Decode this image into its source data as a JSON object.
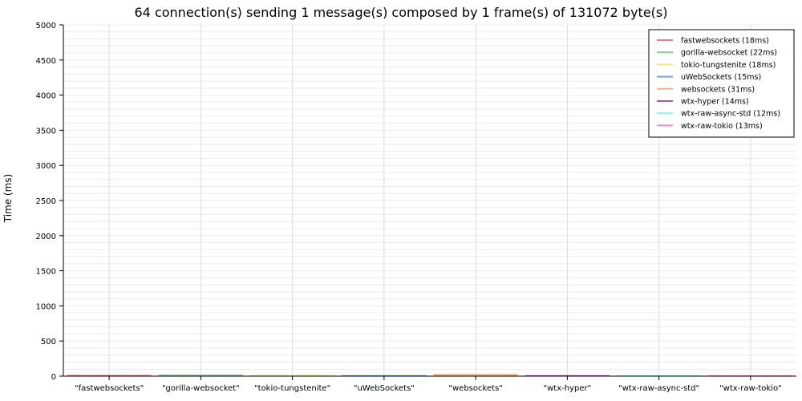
{
  "chart_data": {
    "type": "bar",
    "title": "64 connection(s) sending 1 message(s) composed by 1 frame(s) of 131072 byte(s)",
    "xlabel": "",
    "ylabel": "Time (ms)",
    "ylim": [
      0,
      5000
    ],
    "yticks": [
      0,
      500,
      1000,
      1500,
      2000,
      2500,
      3000,
      3500,
      4000,
      4500,
      5000
    ],
    "grid": true,
    "legend_position": "top-right",
    "categories": [
      "\"fastwebsockets\"",
      "\"gorilla-websocket\"",
      "\"tokio-tungstenite\"",
      "\"uWebSockets\"",
      "\"websockets\"",
      "\"wtx-hyper\"",
      "\"wtx-raw-async-std\"",
      "\"wtx-raw-tokio\""
    ],
    "series": [
      {
        "name": "fastwebsockets (18ms)",
        "color": "#e8808c",
        "values": [
          18,
          0,
          0,
          0,
          0,
          0,
          0,
          0
        ]
      },
      {
        "name": "gorilla-websocket (22ms)",
        "color": "#7fcf8c",
        "values": [
          0,
          22,
          0,
          0,
          0,
          0,
          0,
          0
        ]
      },
      {
        "name": "tokio-tungstenite (18ms)",
        "color": "#f6e58c",
        "values": [
          0,
          0,
          18,
          0,
          0,
          0,
          0,
          0
        ]
      },
      {
        "name": "uWebSockets (15ms)",
        "color": "#6fa9dc",
        "values": [
          0,
          0,
          0,
          15,
          0,
          0,
          0,
          0
        ]
      },
      {
        "name": "websockets (31ms)",
        "color": "#f4b07f",
        "values": [
          0,
          0,
          0,
          0,
          31,
          0,
          0,
          0
        ]
      },
      {
        "name": "wtx-hyper (14ms)",
        "color": "#a35ab8",
        "values": [
          0,
          0,
          0,
          0,
          0,
          14,
          0,
          0
        ]
      },
      {
        "name": "wtx-raw-async-std (12ms)",
        "color": "#8df2e8",
        "values": [
          0,
          0,
          0,
          0,
          0,
          0,
          12,
          0
        ]
      },
      {
        "name": "wtx-raw-tokio (13ms)",
        "color": "#f28fcf",
        "values": [
          0,
          0,
          0,
          0,
          0,
          0,
          0,
          13
        ]
      }
    ]
  }
}
